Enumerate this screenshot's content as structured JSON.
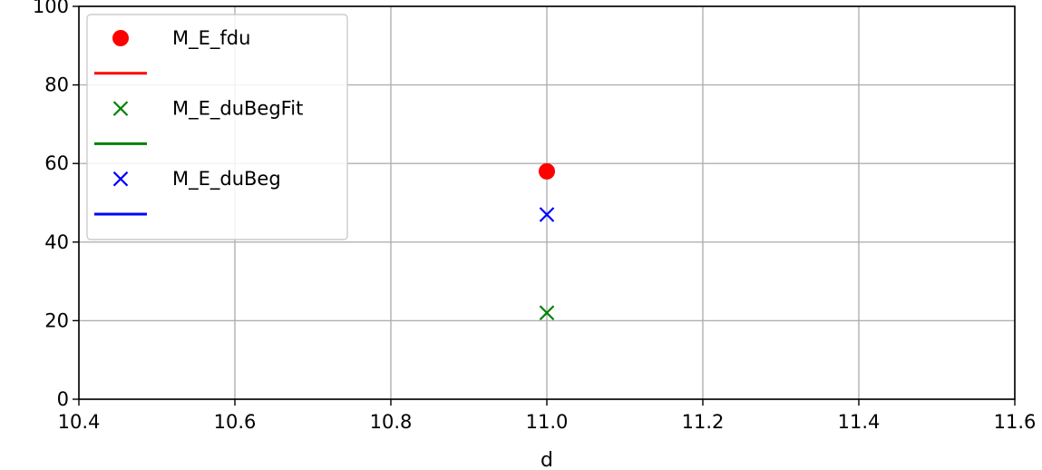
{
  "chart_data": {
    "type": "scatter",
    "title": "",
    "xlabel": "d",
    "ylabel": "",
    "xlim": [
      10.4,
      11.6
    ],
    "ylim": [
      0,
      100
    ],
    "x_ticks": [
      "10.4",
      "10.6",
      "10.8",
      "11.0",
      "11.2",
      "11.4",
      "11.6"
    ],
    "y_ticks": [
      "0",
      "20",
      "40",
      "60",
      "80",
      "100"
    ],
    "grid": true,
    "legend_position": "top-left",
    "series": [
      {
        "name": "M_E_fdu",
        "marker": "circle",
        "color": "#ff0000",
        "points": [
          {
            "x": 11.0,
            "y": 58
          }
        ],
        "fit_line": []
      },
      {
        "name": "M_E_duBegFit",
        "marker": "x",
        "color": "#008000",
        "points": [
          {
            "x": 11.0,
            "y": 22
          }
        ],
        "fit_line": []
      },
      {
        "name": "M_E_duBeg",
        "marker": "x",
        "color": "#0000ff",
        "points": [
          {
            "x": 11.0,
            "y": 47
          }
        ],
        "fit_line": []
      }
    ]
  }
}
